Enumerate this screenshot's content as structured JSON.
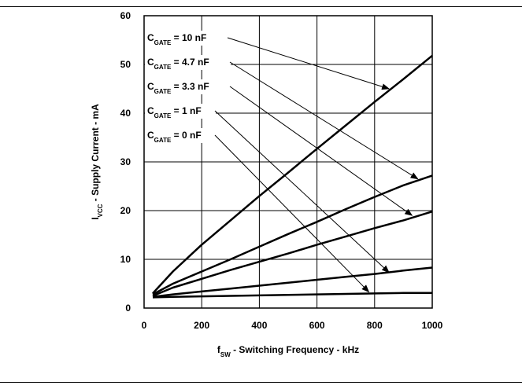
{
  "chart_data": {
    "type": "line",
    "xlabel": {
      "main": "f",
      "sub": "SW",
      "rest": " - Switching Frequency - kHz"
    },
    "ylabel": {
      "main": "I",
      "sub": "VCC",
      "rest": " - Supply Current - mA"
    },
    "xlim": [
      0,
      1000
    ],
    "ylim": [
      0,
      60
    ],
    "xticks": [
      0,
      200,
      400,
      600,
      800,
      1000
    ],
    "yticks": [
      0,
      10,
      20,
      30,
      40,
      50,
      60
    ],
    "grid": true,
    "colors": {
      "line": "#000000",
      "grid": "#000000",
      "background": "#ffffff"
    },
    "series": [
      {
        "name": "C_GATE = 10 nF",
        "label": {
          "main": "C",
          "sub": "GATE",
          "rest": " = 10 nF"
        },
        "x": [
          30,
          100,
          200,
          300,
          400,
          500,
          600,
          700,
          800,
          900,
          1000
        ],
        "y": [
          3,
          7.5,
          13,
          18,
          23,
          27.8,
          32.7,
          37.5,
          42.3,
          47,
          51.8
        ]
      },
      {
        "name": "C_GATE = 4.7 nF",
        "label": {
          "main": "C",
          "sub": "GATE",
          "rest": " = 4.7 nF"
        },
        "x": [
          30,
          100,
          200,
          300,
          400,
          500,
          600,
          700,
          800,
          900,
          1000
        ],
        "y": [
          2.8,
          5,
          7.5,
          10,
          12.6,
          15.2,
          17.7,
          20.3,
          22.8,
          25.2,
          27.2
        ]
      },
      {
        "name": "C_GATE = 3.3 nF",
        "label": {
          "main": "C",
          "sub": "GATE",
          "rest": " = 3.3 nF"
        },
        "x": [
          30,
          100,
          200,
          300,
          400,
          500,
          600,
          700,
          800,
          900,
          1000
        ],
        "y": [
          2.5,
          4.2,
          6,
          7.8,
          9.5,
          11.2,
          13,
          14.7,
          16.4,
          18,
          19.8
        ]
      },
      {
        "name": "C_GATE = 1 nF",
        "label": {
          "main": "C",
          "sub": "GATE",
          "rest": " = 1 nF"
        },
        "x": [
          30,
          100,
          200,
          300,
          400,
          500,
          600,
          700,
          800,
          900,
          1000
        ],
        "y": [
          2.3,
          2.8,
          3.4,
          4,
          4.6,
          5.2,
          5.8,
          6.4,
          7,
          7.7,
          8.3
        ]
      },
      {
        "name": "C_GATE = 0 nF",
        "label": {
          "main": "C",
          "sub": "GATE",
          "rest": " = 0 nF"
        },
        "x": [
          30,
          100,
          200,
          300,
          400,
          500,
          600,
          700,
          800,
          900,
          1000
        ],
        "y": [
          2.2,
          2.3,
          2.4,
          2.5,
          2.6,
          2.7,
          2.8,
          2.9,
          3,
          3.1,
          3.1
        ]
      }
    ],
    "annotations": [
      {
        "series": 0,
        "arrow_to": [
          850,
          45
        ]
      },
      {
        "series": 1,
        "arrow_to": [
          950,
          26.5
        ]
      },
      {
        "series": 2,
        "arrow_to": [
          930,
          19
        ]
      },
      {
        "series": 3,
        "arrow_to": [
          850,
          7.3
        ]
      },
      {
        "series": 4,
        "arrow_to": [
          780,
          3.3
        ]
      }
    ]
  }
}
